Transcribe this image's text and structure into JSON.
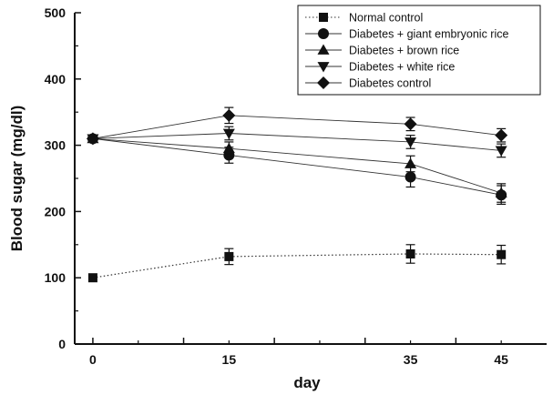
{
  "chart_data": {
    "type": "line",
    "title": "",
    "xlabel": "day",
    "ylabel": "Blood sugar (mg/dl)",
    "xlim": [
      -2,
      50
    ],
    "ylim": [
      0,
      500
    ],
    "x_ticks": [
      0,
      15,
      35,
      45
    ],
    "y_ticks": [
      0,
      100,
      200,
      300,
      400,
      500
    ],
    "x": [
      0,
      15,
      35,
      45
    ],
    "legend_position": "top-right",
    "grid": false,
    "series": [
      {
        "name": "Normal control",
        "marker": "square",
        "line": "dotted",
        "values": [
          100,
          132,
          136,
          135
        ],
        "errors": [
          0,
          12,
          14,
          14
        ]
      },
      {
        "name": "Diabetes + giant embryonic rice",
        "marker": "circle",
        "line": "solid",
        "values": [
          310,
          285,
          252,
          225
        ],
        "errors": [
          0,
          12,
          15,
          14
        ]
      },
      {
        "name": "Diabetes + brown rice",
        "marker": "triangle-up",
        "line": "solid",
        "values": [
          310,
          295,
          272,
          228
        ],
        "errors": [
          0,
          10,
          12,
          14
        ]
      },
      {
        "name": "Diabetes + white rice",
        "marker": "triangle-down",
        "line": "solid",
        "values": [
          310,
          318,
          305,
          292
        ],
        "errors": [
          0,
          10,
          10,
          10
        ]
      },
      {
        "name": "Diabetes control",
        "marker": "diamond",
        "line": "solid",
        "values": [
          310,
          345,
          332,
          315
        ],
        "errors": [
          0,
          12,
          10,
          10
        ]
      }
    ]
  }
}
